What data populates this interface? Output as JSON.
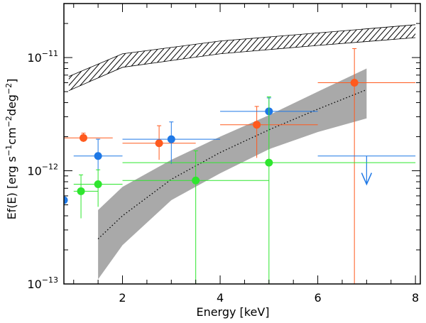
{
  "chart_data": {
    "type": "scatter",
    "x_axis": {
      "label": "Energy [keV]",
      "scale": "linear",
      "range": [
        0.8,
        8.1
      ],
      "major_ticks": [
        2,
        4,
        6,
        8
      ],
      "tick_labels": [
        "2",
        "4",
        "6",
        "8"
      ],
      "minor_step": 0.5
    },
    "y_axis": {
      "label_parts": {
        "pre": "Ef(E) [erg s",
        "sup1": "−1",
        "mid1": "cm",
        "sup2": "−2",
        "mid2": "deg",
        "sup3": "−2",
        "post": "]"
      },
      "scale": "log",
      "range": [
        1e-13,
        3e-11
      ],
      "major_ticks": [
        1e-13,
        1e-12,
        1e-11
      ],
      "tick_labels": [
        {
          "base": "10",
          "exp": "−13"
        },
        {
          "base": "10",
          "exp": "−12"
        },
        {
          "base": "10",
          "exp": "−11"
        }
      ]
    },
    "series": [
      {
        "name": "orange",
        "color": "#ff5a1e",
        "points": [
          {
            "x": 1.2,
            "xlo": 0.8,
            "xhi": 1.8,
            "y": 1.95e-12,
            "ylo": 1.8e-12,
            "yhi": 2.15e-12
          },
          {
            "x": 2.75,
            "xlo": 2.0,
            "xhi": 3.5,
            "y": 1.75e-12,
            "ylo": 1.25e-12,
            "yhi": 2.5e-12
          },
          {
            "x": 4.75,
            "xlo": 4.0,
            "xhi": 6.0,
            "y": 2.55e-12,
            "ylo": 1.3e-12,
            "yhi": 3.7e-12
          },
          {
            "x": 6.75,
            "xlo": 6.0,
            "xhi": 8.0,
            "y": 6e-12,
            "ylo": 1e-13,
            "yhi": 1.2e-11
          }
        ]
      },
      {
        "name": "blue",
        "color": "#1e78e6",
        "points": [
          {
            "x": 1.5,
            "xlo": 1.0,
            "xhi": 2.0,
            "y": 1.35e-12,
            "ylo": 1e-12,
            "yhi": 1.9e-12
          },
          {
            "x": 3.0,
            "xlo": 2.0,
            "xhi": 4.0,
            "y": 1.9e-12,
            "ylo": 1.15e-12,
            "yhi": 2.7e-12
          },
          {
            "x": 5.0,
            "xlo": 4.0,
            "xhi": 6.0,
            "y": 3.35e-12,
            "ylo": 2.25e-12,
            "yhi": 4.4e-12
          }
        ],
        "upper_limit": {
          "x": 7.0,
          "xlo": 6.0,
          "xhi": 8.0,
          "y": 1.35e-12,
          "arrow_to": 7.6e-13
        },
        "offscale_marker": {
          "x": 0.8,
          "y": 5.5e-13
        }
      },
      {
        "name": "green",
        "color": "#2ee62e",
        "points": [
          {
            "x": 1.15,
            "xlo": 1.0,
            "xhi": 1.5,
            "y": 6.6e-13,
            "ylo": 3.8e-13,
            "yhi": 9.2e-13
          },
          {
            "x": 1.5,
            "xlo": 1.0,
            "xhi": 2.0,
            "y": 7.6e-13,
            "ylo": 4.8e-13,
            "yhi": 1.02e-12
          },
          {
            "x": 3.5,
            "xlo": 2.0,
            "xhi": 5.0,
            "y": 8.2e-13,
            "ylo": 1e-13,
            "yhi": 1.5e-12
          },
          {
            "x": 5.0,
            "xlo": 2.0,
            "xhi": 8.0,
            "y": 1.18e-12,
            "ylo": 1e-13,
            "yhi": 4.5e-12
          }
        ]
      }
    ],
    "model_band": {
      "color": "#a9a9a9",
      "x": [
        1.5,
        2.0,
        3.0,
        4.0,
        5.0,
        6.0,
        7.0
      ],
      "upper": [
        4.5e-13,
        7.2e-13,
        1.25e-12,
        2e-12,
        3.1e-12,
        5e-12,
        8e-12
      ],
      "lower": [
        1.1e-13,
        2.2e-13,
        5.5e-13,
        9.5e-13,
        1.55e-12,
        2.2e-12,
        2.9e-12
      ]
    },
    "model_curve": {
      "style": "dotted",
      "x": [
        1.5,
        2.0,
        3.0,
        4.0,
        5.0,
        6.0,
        7.0
      ],
      "y": [
        2.5e-13,
        4e-13,
        8.4e-13,
        1.45e-12,
        2.3e-12,
        3.5e-12,
        5.2e-12
      ]
    },
    "hatched_band": {
      "x": [
        0.9,
        2.0,
        4.0,
        6.0,
        8.0
      ],
      "upper": [
        6.8e-12,
        1.08e-11,
        1.4e-11,
        1.65e-11,
        1.95e-11
      ],
      "lower": [
        5.1e-12,
        8.2e-12,
        1.08e-11,
        1.28e-11,
        1.5e-11
      ]
    }
  }
}
